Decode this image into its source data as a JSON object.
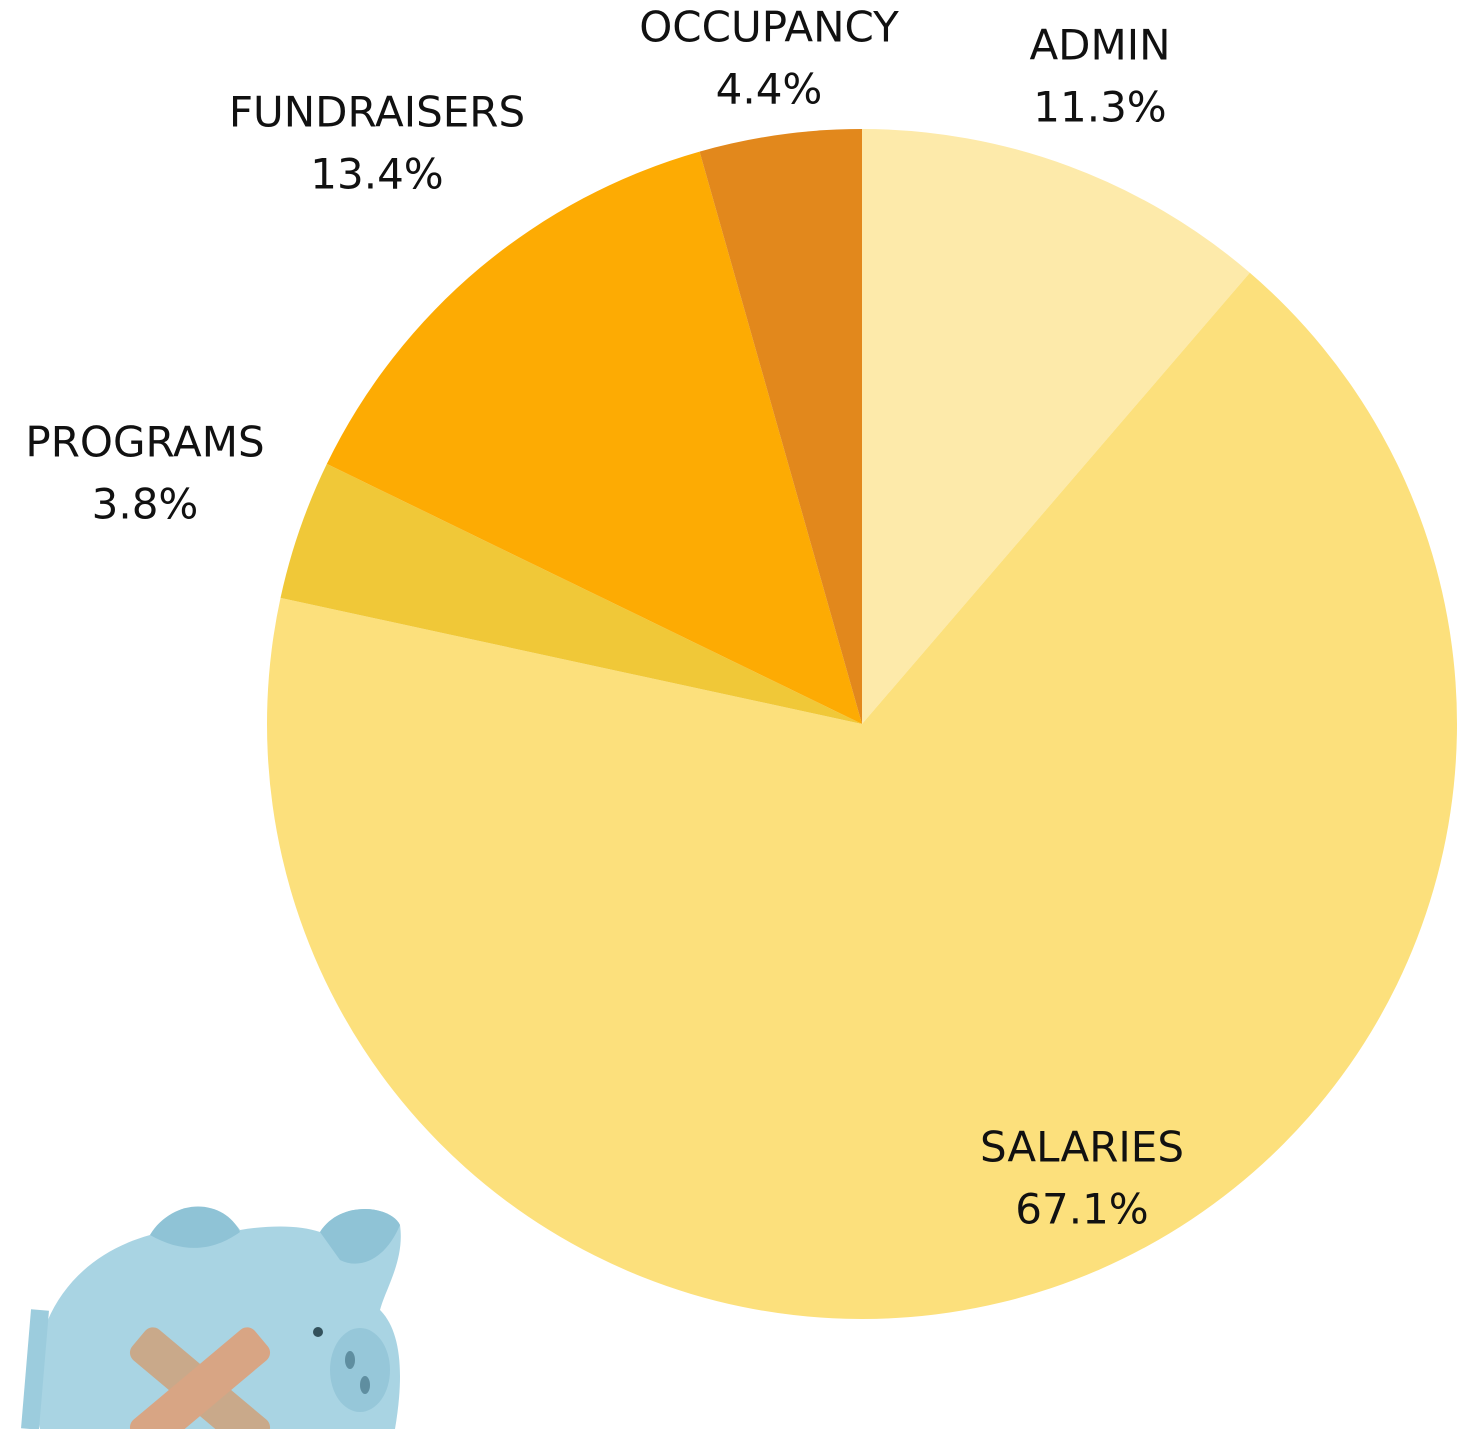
{
  "chart_data": {
    "type": "pie",
    "categories": [
      "ADMIN",
      "SALARIES",
      "PROGRAMS",
      "FUNDRAISERS",
      "OCCUPANCY"
    ],
    "values": [
      11.3,
      67.1,
      3.8,
      13.4,
      4.4
    ],
    "value_labels": [
      "11.3%",
      "67.1%",
      "3.8%",
      "13.4%",
      "4.4%"
    ],
    "colors": [
      "#fdeaaa",
      "#fce07c",
      "#f0c838",
      "#fdab03",
      "#e2881c"
    ]
  }
}
